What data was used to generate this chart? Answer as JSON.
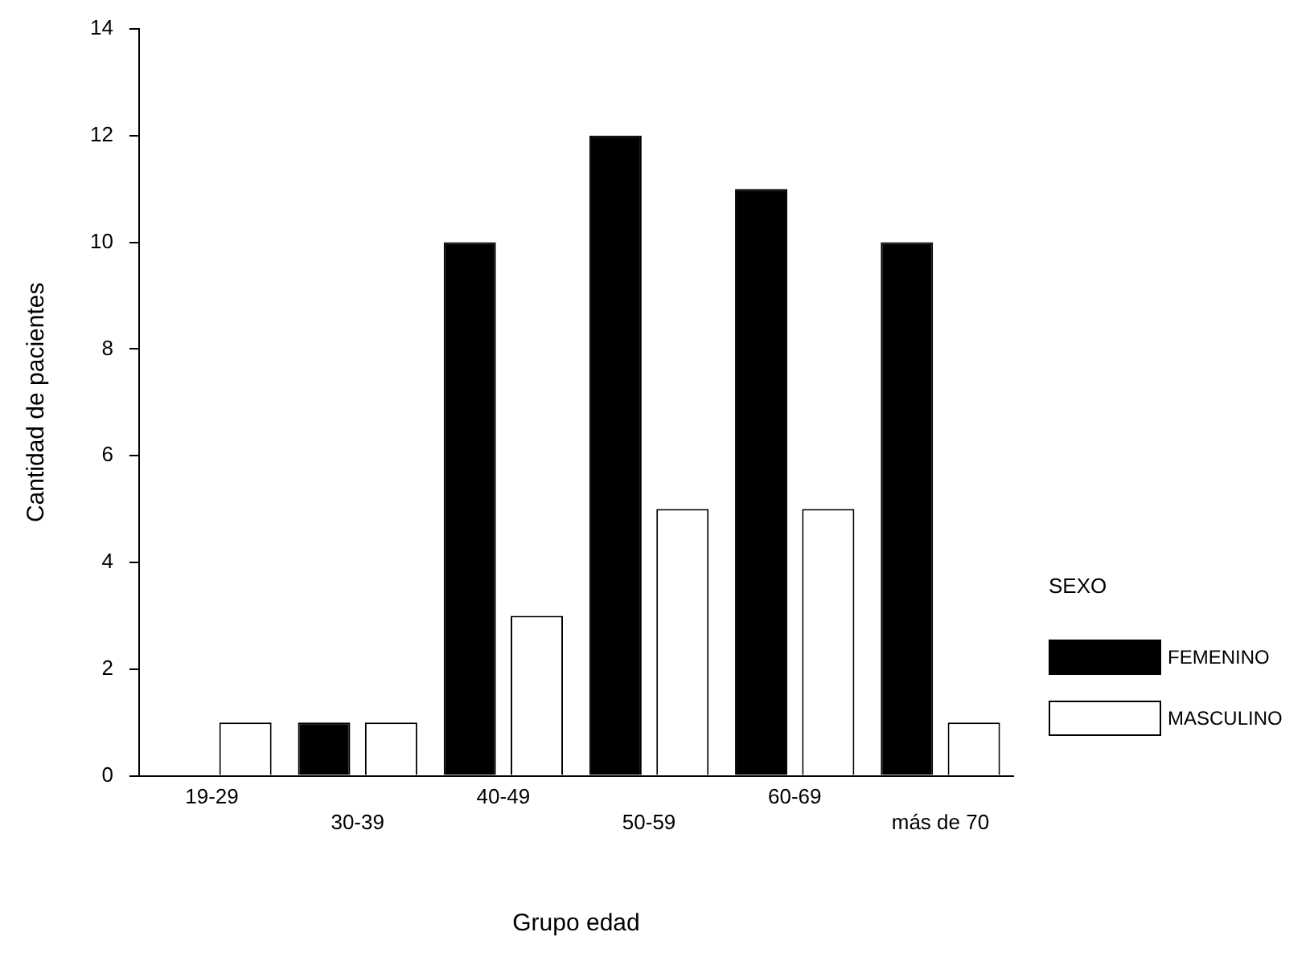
{
  "chart_data": {
    "type": "bar",
    "xlabel": "Grupo edad",
    "ylabel": "Cantidad de pacientes",
    "legend_title": "SEXO",
    "categories": [
      "19-29",
      "30-39",
      "40-49",
      "50-59",
      "60-69",
      "más de 70"
    ],
    "series": [
      {
        "name": "FEMENINO",
        "color": "#000000",
        "values": [
          0,
          1,
          10,
          12,
          11,
          10
        ]
      },
      {
        "name": "MASCULINO",
        "color": "#ffffff",
        "values": [
          1,
          1,
          3,
          5,
          5,
          1
        ]
      }
    ],
    "ylim": [
      0,
      14
    ],
    "yticks": [
      0,
      2,
      4,
      6,
      8,
      10,
      12,
      14
    ],
    "grid": false,
    "legend": "right"
  }
}
